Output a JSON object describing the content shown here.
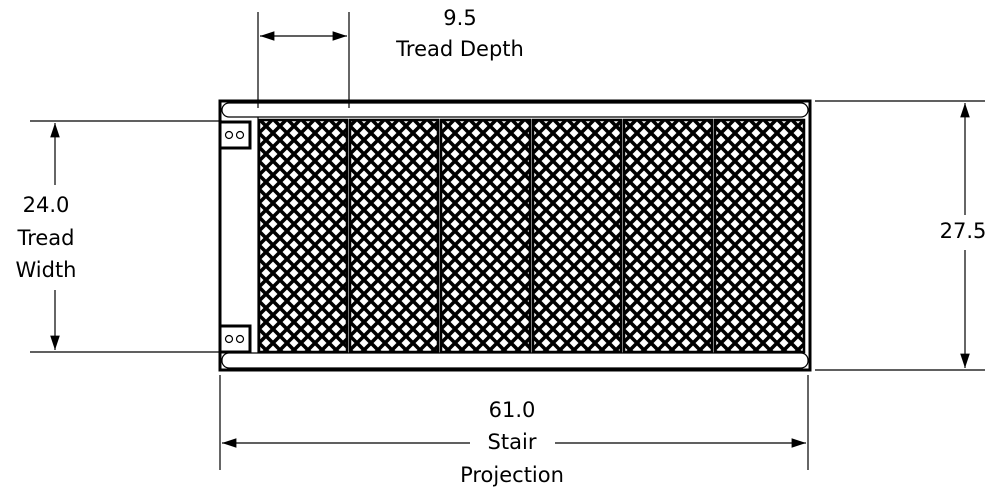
{
  "dimensions": {
    "tread_depth": {
      "value": "9.5",
      "label": "Tread Depth"
    },
    "tread_width": {
      "value": "24.0",
      "label": [
        "Tread",
        "Width"
      ]
    },
    "overall_width": {
      "value": "27.5"
    },
    "stair_projection": {
      "value": "61.0",
      "label": [
        "Stair",
        "Projection"
      ]
    }
  }
}
